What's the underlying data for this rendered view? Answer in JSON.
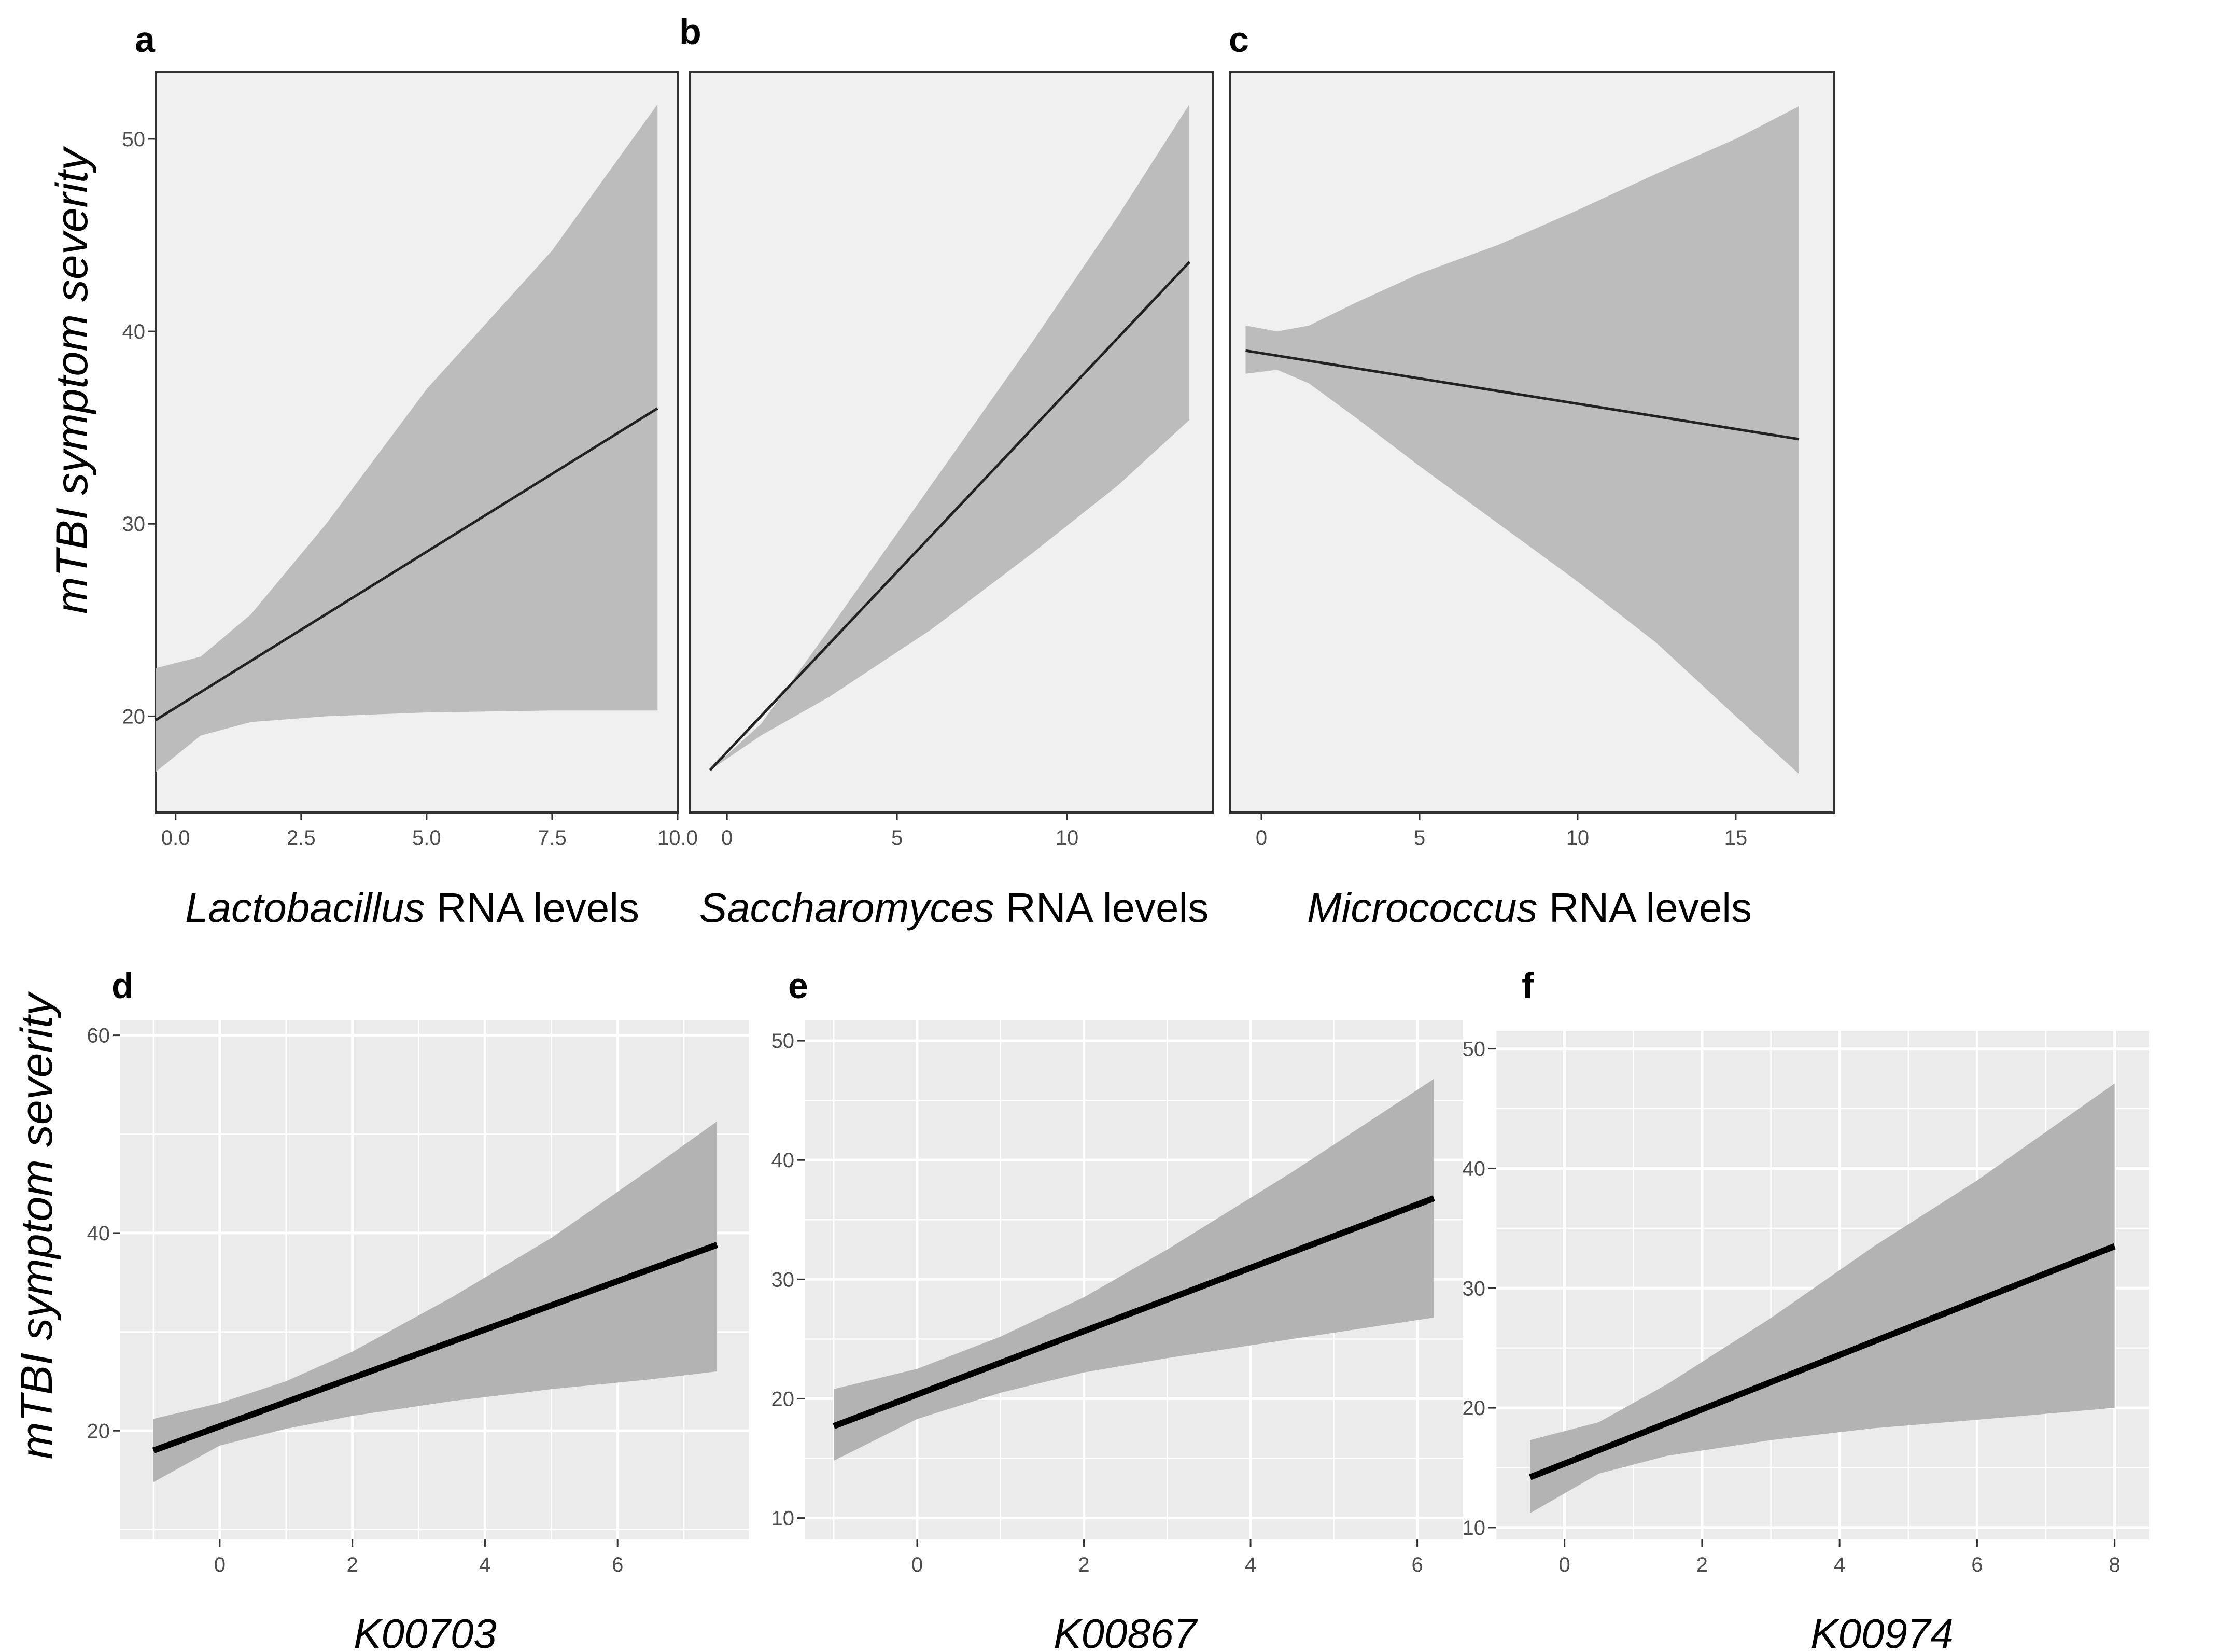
{
  "figure": {
    "ylabel": "mTBI symptom severity"
  },
  "chart_data": [
    {
      "panel": "a",
      "type": "line",
      "style": "plain",
      "xlabel_italic": "Lactobacillus",
      "xlabel_rest": " RNA levels",
      "xlim": [
        -0.4,
        10.0
      ],
      "ylim": [
        15.0,
        53.5
      ],
      "xticks": [
        0.0,
        2.5,
        5.0,
        7.5,
        10.0
      ],
      "xtick_labels": [
        "0.0",
        "2.5",
        "5.0",
        "7.5",
        "10.0"
      ],
      "yticks": [
        20,
        30,
        40,
        50
      ],
      "ytick_labels": [
        "20",
        "30",
        "40",
        "50"
      ],
      "line": {
        "x": [
          -0.4,
          9.6
        ],
        "y": [
          19.8,
          36.0
        ]
      },
      "band": {
        "x": [
          -0.4,
          0.5,
          1.5,
          3.0,
          5.0,
          7.5,
          9.6
        ],
        "lower": [
          17.1,
          19.0,
          19.7,
          20.0,
          20.2,
          20.3,
          20.3
        ],
        "upper": [
          22.5,
          23.1,
          25.3,
          30.0,
          37.0,
          44.2,
          51.8
        ]
      }
    },
    {
      "panel": "b",
      "type": "line",
      "style": "plain",
      "xlabel_italic": "Saccharomyces",
      "xlabel_rest": " RNA levels",
      "xlim": [
        -1.1,
        14.3
      ],
      "ylim": [
        15.0,
        53.5
      ],
      "xticks": [
        0,
        5,
        10
      ],
      "xtick_labels": [
        "0",
        "5",
        "10"
      ],
      "yticks": [],
      "ytick_labels": [],
      "line": {
        "x": [
          -0.5,
          13.6
        ],
        "y": [
          17.2,
          43.6
        ]
      },
      "band": {
        "x": [
          -0.5,
          1.0,
          3.0,
          6.0,
          9.0,
          11.5,
          13.6
        ],
        "lower": [
          17.2,
          19.0,
          21.0,
          24.5,
          28.5,
          32.0,
          35.4
        ],
        "upper": [
          17.2,
          19.6,
          24.5,
          32.0,
          39.5,
          46.0,
          51.8
        ]
      }
    },
    {
      "panel": "c",
      "type": "line",
      "style": "plain",
      "xlabel_italic": "Micrococcus",
      "xlabel_rest": " RNA levels",
      "xlim": [
        -1.0,
        18.1
      ],
      "ylim": [
        15.0,
        53.5
      ],
      "xticks": [
        0,
        5,
        10,
        15
      ],
      "xtick_labels": [
        "0",
        "5",
        "10",
        "15"
      ],
      "yticks": [],
      "ytick_labels": [],
      "line": {
        "x": [
          -0.5,
          17.0
        ],
        "y": [
          39.0,
          34.4
        ]
      },
      "band": {
        "x": [
          -0.5,
          0.5,
          1.5,
          3.0,
          5.0,
          7.5,
          10.0,
          12.5,
          15.0,
          17.0
        ],
        "lower": [
          37.8,
          38.0,
          37.3,
          35.5,
          33.0,
          30.0,
          27.0,
          23.8,
          20.0,
          17.0
        ],
        "upper": [
          40.3,
          40.0,
          40.3,
          41.5,
          43.0,
          44.5,
          46.3,
          48.2,
          50.0,
          51.7
        ]
      }
    },
    {
      "panel": "d",
      "type": "line",
      "style": "grid",
      "xlabel_italic": "K00703",
      "xlabel_rest": "",
      "xlim": [
        -1.5,
        8.0
      ],
      "ylim": [
        9.0,
        61.5
      ],
      "xticks": [
        0,
        2,
        4,
        6
      ],
      "xtick_labels": [
        "0",
        "2",
        "4",
        "6"
      ],
      "yticks": [
        20,
        40,
        60
      ],
      "ytick_labels": [
        "20",
        "40",
        "60"
      ],
      "line": {
        "x": [
          -1.0,
          7.5
        ],
        "y": [
          18.0,
          38.8
        ]
      },
      "band": {
        "x": [
          -1.0,
          0.0,
          1.0,
          2.0,
          3.5,
          5.0,
          6.5,
          7.5
        ],
        "lower": [
          14.8,
          18.5,
          20.2,
          21.5,
          23.0,
          24.2,
          25.2,
          26.0
        ],
        "upper": [
          21.2,
          22.8,
          25.0,
          28.0,
          33.5,
          39.5,
          46.5,
          51.3
        ]
      }
    },
    {
      "panel": "e",
      "type": "line",
      "style": "grid",
      "xlabel_italic": "K00867",
      "xlabel_rest": "",
      "xlim": [
        -1.35,
        6.55
      ],
      "ylim": [
        8.2,
        51.7
      ],
      "xticks": [
        0,
        2,
        4,
        6
      ],
      "xtick_labels": [
        "0",
        "2",
        "4",
        "6"
      ],
      "yticks": [
        10,
        20,
        30,
        40,
        50
      ],
      "ytick_labels": [
        "10",
        "20",
        "30",
        "40",
        "50"
      ],
      "line": {
        "x": [
          -1.0,
          6.2
        ],
        "y": [
          17.7,
          36.8
        ]
      },
      "band": {
        "x": [
          -1.0,
          0.0,
          1.0,
          2.0,
          3.0,
          4.5,
          6.2
        ],
        "lower": [
          14.8,
          18.3,
          20.5,
          22.2,
          23.4,
          25.0,
          26.8
        ],
        "upper": [
          20.8,
          22.5,
          25.2,
          28.5,
          32.5,
          39.0,
          46.8
        ]
      }
    },
    {
      "panel": "f",
      "type": "line",
      "style": "grid",
      "xlabel_italic": "K00974",
      "xlabel_rest": "",
      "xlim": [
        -1.0,
        8.5
      ],
      "ylim": [
        9.0,
        51.5
      ],
      "xticks": [
        0,
        2,
        4,
        6,
        8
      ],
      "xtick_labels": [
        "0",
        "2",
        "4",
        "6",
        "8"
      ],
      "yticks": [
        10,
        20,
        30,
        40,
        50
      ],
      "ytick_labels": [
        "10",
        "20",
        "30",
        "40",
        "50"
      ],
      "line": {
        "x": [
          -0.5,
          8.0
        ],
        "y": [
          14.2,
          33.5
        ]
      },
      "band": {
        "x": [
          -0.5,
          0.5,
          1.5,
          3.0,
          4.5,
          6.0,
          8.0
        ],
        "lower": [
          11.2,
          14.5,
          16.0,
          17.3,
          18.3,
          19.0,
          20.0
        ],
        "upper": [
          17.3,
          18.8,
          22.0,
          27.5,
          33.5,
          39.0,
          47.1
        ]
      }
    }
  ]
}
